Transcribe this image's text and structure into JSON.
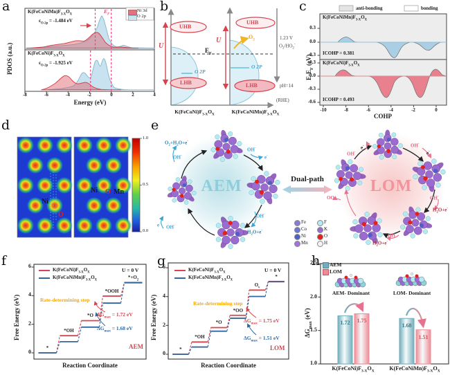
{
  "panels": {
    "a": {
      "label": "a",
      "ylabel": "PDOS (a.u.)",
      "xlabel": "Energy (eV)",
      "xticks": [
        "-8",
        "-6",
        "-4",
        "-2",
        "0",
        "2",
        "4"
      ],
      "ef": "E_{F}",
      "legend": [
        {
          "label": "Ni 3d",
          "color": "#e2727b"
        },
        {
          "label": "O 2p",
          "color": "#cfe3ef"
        }
      ],
      "subplots": [
        {
          "title": "K(FeCoNiMn)F_{3-X}O_{X}",
          "annotation": "ε_{O-2p} = -1.484 eV"
        },
        {
          "title": "K(FeCoNi)F_{3-X}O_{X}",
          "annotation": "ε_{O-2p} = -1.925 eV"
        }
      ]
    },
    "b": {
      "label": "b",
      "u": "U",
      "uhb": "UHB",
      "lhb": "LHB",
      "ef": "E_{F}",
      "o2p": "O 2P",
      "o2": "O_{2}",
      "volt": "1.23 V",
      "couple": "O_{2}/HO_{2}^{-}",
      "ph": "pH=14",
      "rhe": "(RHE)",
      "xlabels": [
        "K(FeCoNi)F_{3-X}O_{X}",
        "K(FeCoNiMn)F_{3-X}O_{X}"
      ]
    },
    "c": {
      "label": "c",
      "legend": [
        {
          "label": "anti-bonding",
          "color": "#e4e4e4"
        },
        {
          "label": "bonding",
          "color": "#ffffff"
        }
      ],
      "ylabel": "E-E_{F} (eV)",
      "xlabel": "COHP",
      "xticks": [
        "-10",
        "-8",
        "-6",
        "-4",
        "-2",
        "0"
      ],
      "subplots": [
        {
          "title": "K(FeCoNiMn)F_{3-X}O_{X}",
          "icohp": "ICOHP = 0.381",
          "yticks": [
            "0.3",
            "0.0",
            "-0.3"
          ]
        },
        {
          "title": "K(FeCoNi)F_{3-X}O_{X}",
          "icohp": "ICOHP = 0.493",
          "yticks": [
            "0.3",
            "0.0",
            "-0.3",
            "-0.6"
          ]
        }
      ]
    },
    "d": {
      "label": "d",
      "left_map_labels": {
        "ni": "Ni",
        "o": "O"
      },
      "right_map_labels": {
        "ni": "Ni",
        "o": "O",
        "mn": "Mn"
      },
      "colorbar_ticks": [
        "1.0",
        "0.5",
        "0.0"
      ]
    },
    "e": {
      "label": "e",
      "aem": "AEM",
      "lom": "LOM",
      "dual_path": "Dual-path",
      "aem_steps": {
        "release": "O_{2}+H_{2}O+e^{-}",
        "oh_top_left": "OH^{-}",
        "oh_top_right": "OH^{-}",
        "e_top_right": "e^{-}",
        "oh_bottom_right": "OH^{-}",
        "h2o_bottom_right": "H_{2}O+e^{-}",
        "e_bottom_left": "e^{-}",
        "oh_bottom_left": "OH^{-}"
      },
      "lom_steps": {
        "oh_top_left": "OH^{-}",
        "e_top_left": "e^{-}",
        "oh_top_right": "OH^{-}",
        "e_top_right": "e^{-}",
        "oh_right": "OH^{-}",
        "h2o_right": "H_{2}O+e^{-}",
        "oh_bottom": "OH^{-}",
        "h2o_bottom": "H_{2}O+e^{-}",
        "oo_left": "OO"
      },
      "legend": [
        {
          "label": "Fe",
          "color": "#8a7ad6"
        },
        {
          "label": "Co",
          "color": "#6b76d6"
        },
        {
          "label": "Ni",
          "color": "#4f5fc4"
        },
        {
          "label": "Mn",
          "color": "#a273dc"
        },
        {
          "label": "F",
          "color": "#b5eaf2"
        },
        {
          "label": "K",
          "color": "#9a6cd0"
        },
        {
          "label": "O",
          "color": "#e3201b"
        },
        {
          "label": "H",
          "color": "#f2f2f2"
        }
      ]
    },
    "f": {
      "label": "f"
    },
    "g": {
      "label": "g"
    },
    "h": {
      "label": "h"
    }
  },
  "chart_data": [
    {
      "type": "step-line",
      "panel": "f",
      "mechanism": "AEM",
      "condition": "U = 0 V",
      "xlabel": "Reaction Coordinate",
      "ylabel": "Free Energy (eV)",
      "ylim": [
        0,
        6
      ],
      "yticks": [
        "0",
        "2",
        "4",
        "6"
      ],
      "steps": [
        "*",
        "*OH",
        "*O",
        "*OOH",
        "*+O_{2}"
      ],
      "series": [
        {
          "name": "K(FeCoNi)F_{3-X}O_{X}",
          "color": "#d9434e",
          "values": [
            0,
            1.2,
            2.25,
            3.97,
            4.92
          ]
        },
        {
          "name": "K(FeCoNiMn)F_{3-X}O_{X}",
          "color": "#31679f",
          "values": [
            0,
            0.78,
            1.8,
            3.48,
            4.9
          ]
        }
      ],
      "rds_label": "Rate-determining step",
      "dg_annotations": [
        {
          "text": "ΔG_{max} = 1.72 eV",
          "color": "#d9434e"
        },
        {
          "text": "ΔG_{max} = 1.68 eV",
          "color": "#31679f"
        }
      ]
    },
    {
      "type": "step-line",
      "panel": "g",
      "mechanism": "LOM",
      "condition": "U = 0 V",
      "xlabel": "Reaction Coordinate",
      "ylabel": "Free Energy (eV)",
      "ylim": [
        0,
        6
      ],
      "yticks": [
        "0",
        "2",
        "4",
        "6"
      ],
      "steps": [
        "*",
        "*OH",
        "*O",
        "*OO",
        "O_{v}",
        "*"
      ],
      "series": [
        {
          "name": "K(FeCoNi)F_{3-X}O_{X}",
          "color": "#d9434e",
          "values": [
            0,
            0.85,
            1.85,
            2.7,
            4.45,
            5.05
          ]
        },
        {
          "name": "K(FeCoNiMn)F_{3-X}O_{X}",
          "color": "#31679f",
          "values": [
            0,
            0.5,
            1.6,
            2.5,
            4.01,
            5.03
          ]
        }
      ],
      "rds_label": "Rate-determining step",
      "dg_annotations": [
        {
          "text": "ΔG_{max} = 1.75 eV",
          "color": "#d9434e"
        },
        {
          "text": "ΔG_{max} = 1.51 eV",
          "color": "#31679f"
        }
      ]
    },
    {
      "type": "bar",
      "panel": "h",
      "ylabel": "ΔG_{max} (eV)",
      "ylim": [
        1.0,
        2.5
      ],
      "yticks": [
        "1.0",
        "1.5",
        "2.0",
        "2.5"
      ],
      "categories": [
        "K(FeCoNi)F_{3-X}O_{X}",
        "K(FeCoNiMn)F_{3-X}O_{X}"
      ],
      "series": [
        {
          "name": "AEM",
          "color": "#73aebc",
          "values": [
            1.72,
            1.68
          ],
          "label_color": "#2e7d8c"
        },
        {
          "name": "LOM",
          "color": "#ef8b96",
          "values": [
            1.75,
            1.51
          ],
          "label_color": "#d94f5c"
        }
      ],
      "annotations": [
        "AEM- Dominant",
        "LOM- Dominant"
      ]
    }
  ]
}
